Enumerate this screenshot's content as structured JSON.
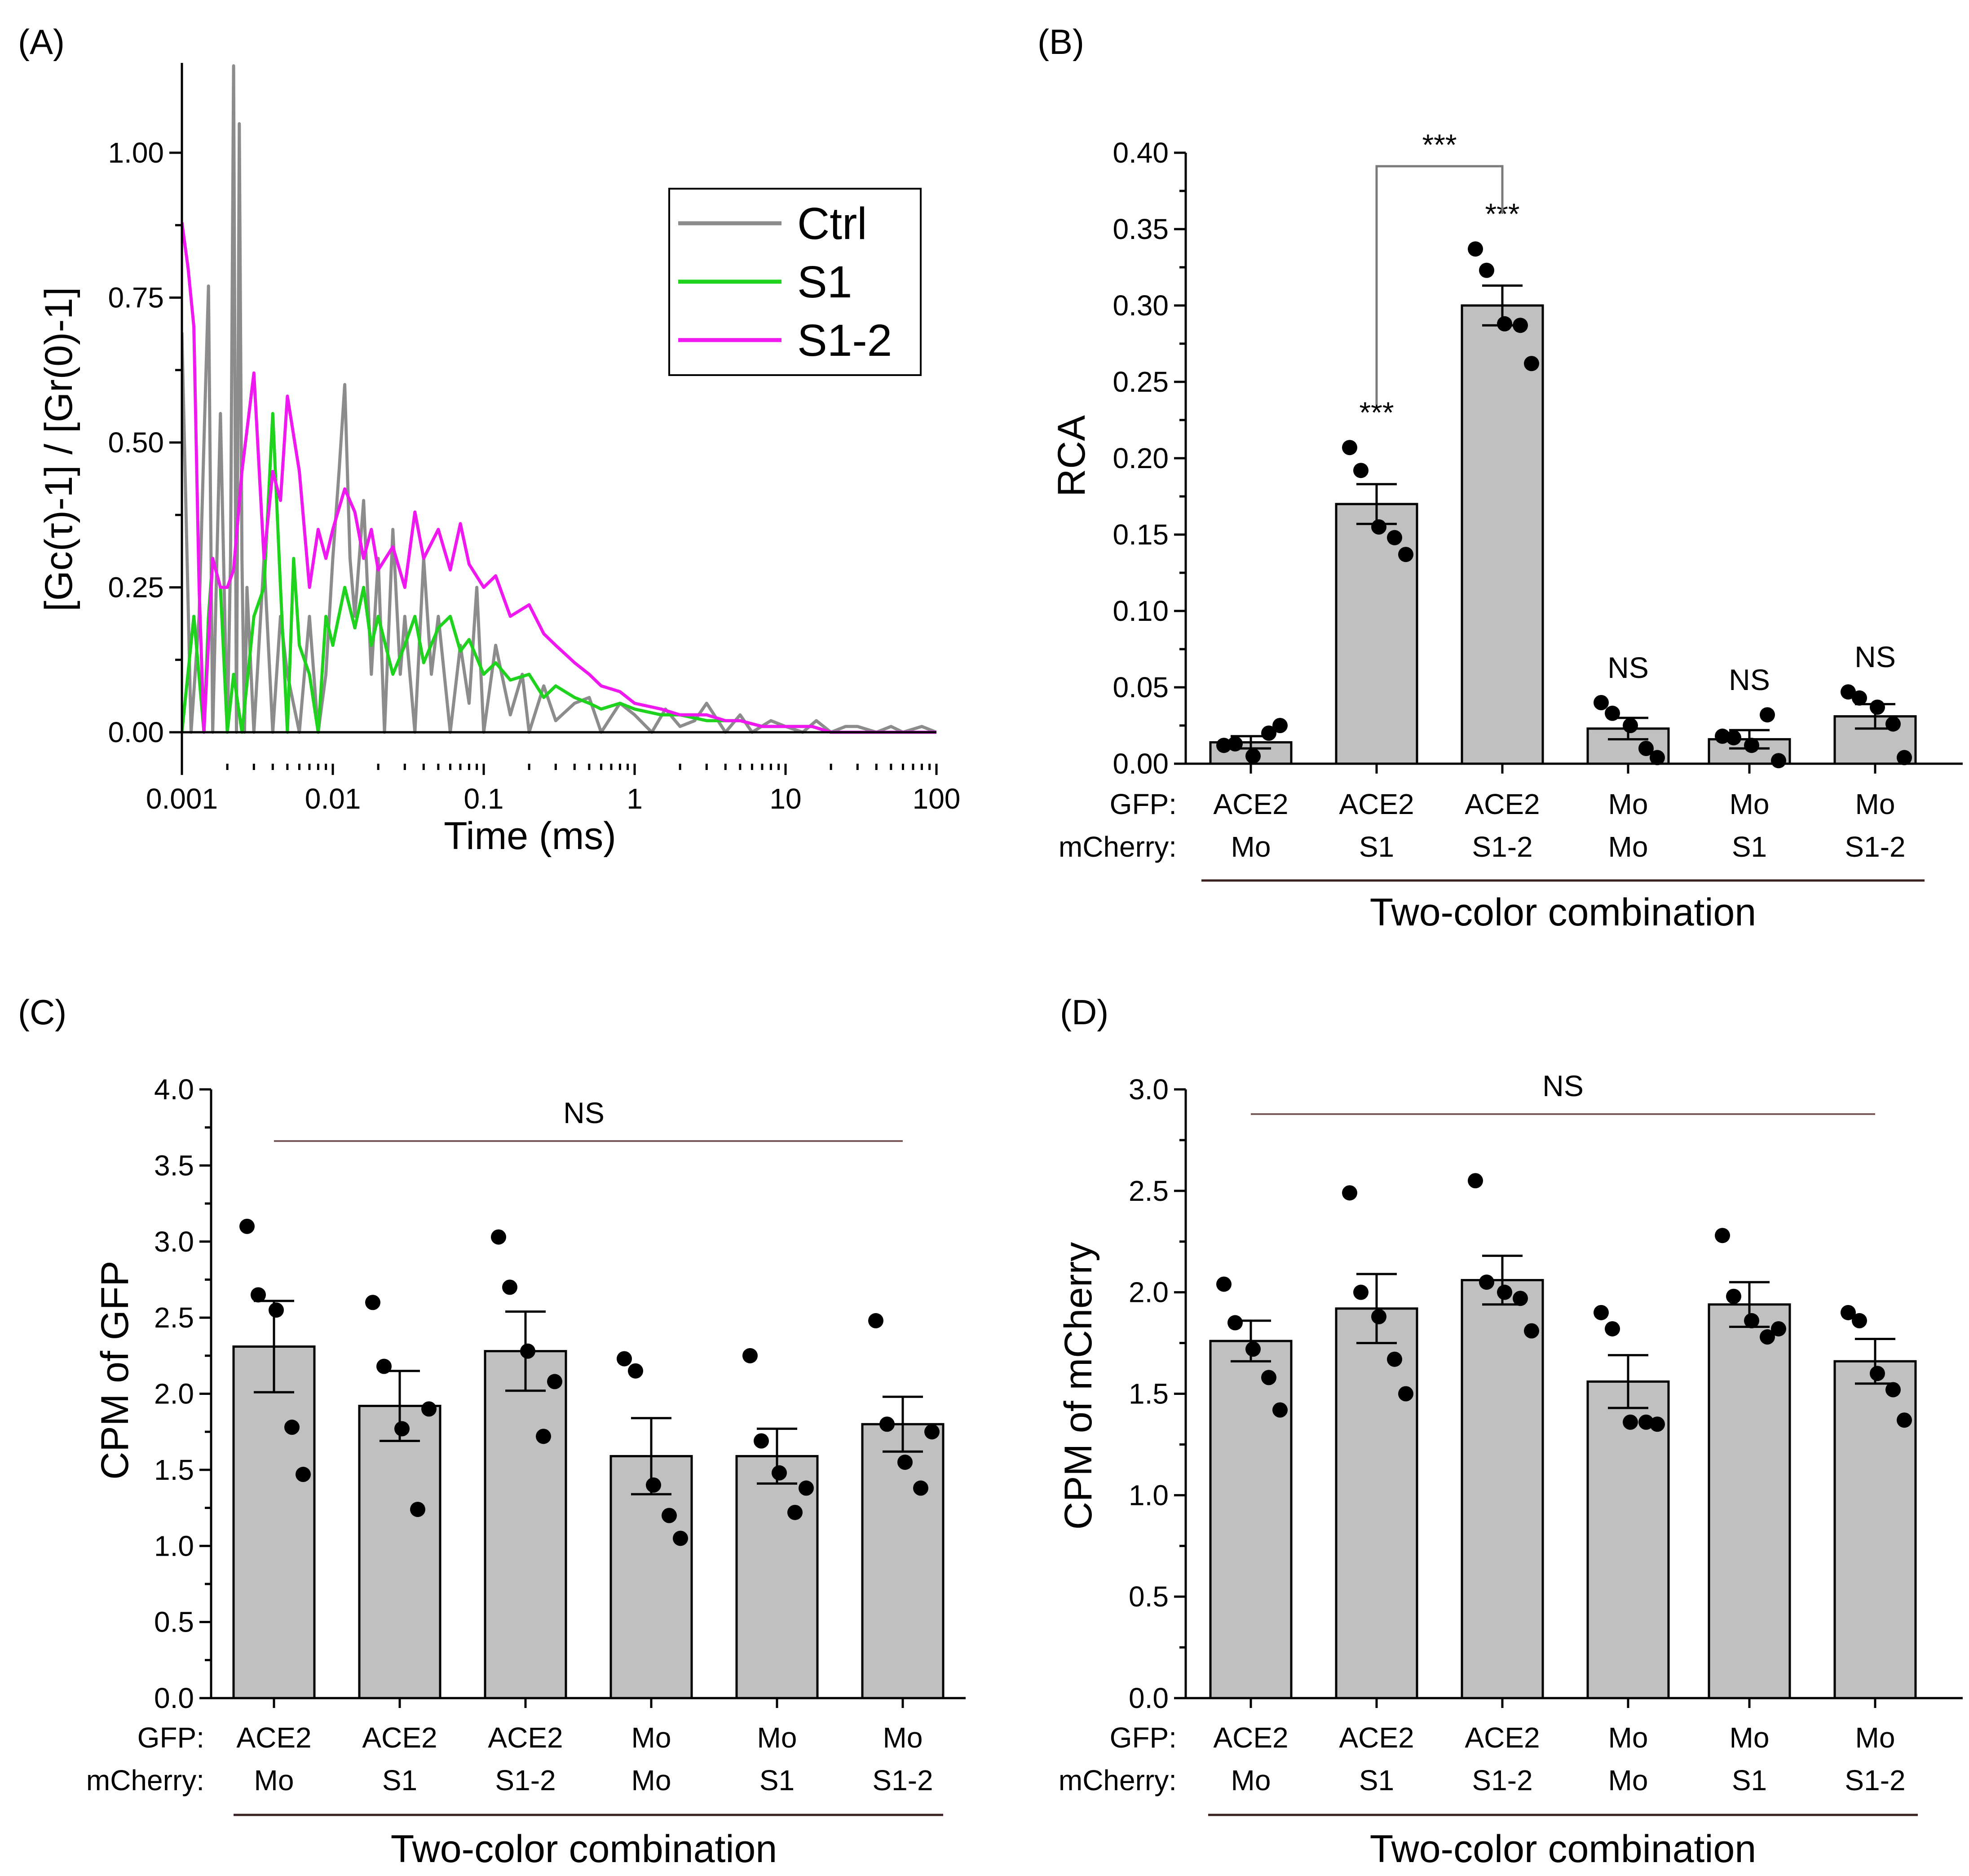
{
  "panels": {
    "A": {
      "label": "(A)",
      "legend": [
        {
          "name": "Ctrl",
          "color": "#8c8c8c"
        },
        {
          "name": "S1",
          "color": "#1ed21e"
        },
        {
          "name": "S1-2",
          "color": "#f018f0"
        }
      ]
    },
    "B": {
      "label": "(B)"
    },
    "C": {
      "label": "(C)"
    },
    "D": {
      "label": "(D)"
    }
  },
  "chart_data": [
    {
      "id": "A",
      "type": "line",
      "title": "",
      "xlabel": "Time (ms)",
      "ylabel": "[Gc(τ)-1] / [Gr(0)-1]",
      "xscale": "log",
      "xlim": [
        0.001,
        100
      ],
      "ylim": [
        -0.05,
        1.15
      ],
      "xticks": [
        "0.001",
        "0.01",
        "0.1",
        "1",
        "10",
        "100"
      ],
      "yticks": [
        "0.00",
        "0.25",
        "0.50",
        "0.75",
        "1.00"
      ],
      "series": [
        {
          "name": "Ctrl",
          "color": "#8c8c8c",
          "x": [
            0.001,
            0.00115,
            0.0013,
            0.0014,
            0.0015,
            0.0016,
            0.0018,
            0.002,
            0.0021,
            0.0022,
            0.0023,
            0.0024,
            0.0025,
            0.0026,
            0.0027,
            0.003,
            0.0035,
            0.004,
            0.0045,
            0.005,
            0.006,
            0.007,
            0.008,
            0.009,
            0.01,
            0.011,
            0.012,
            0.013,
            0.014,
            0.016,
            0.018,
            0.02,
            0.022,
            0.025,
            0.028,
            0.03,
            0.035,
            0.04,
            0.045,
            0.05,
            0.06,
            0.07,
            0.08,
            0.09,
            0.1,
            0.12,
            0.15,
            0.18,
            0.2,
            0.25,
            0.3,
            0.4,
            0.5,
            0.6,
            0.8,
            1,
            1.3,
            1.6,
            2,
            2.5,
            3,
            4,
            5,
            6,
            8,
            10,
            13,
            16,
            20,
            25,
            30,
            40,
            50,
            60,
            80,
            100
          ],
          "y": [
            0.69,
            0.0,
            0.2,
            0.5,
            0.77,
            0.0,
            0.55,
            0.0,
            0.3,
            1.15,
            0.0,
            1.05,
            0.3,
            0.0,
            0.25,
            0.0,
            0.3,
            0.0,
            0.2,
            0.1,
            0.0,
            0.2,
            0.0,
            0.1,
            0.3,
            0.45,
            0.6,
            0.3,
            0.2,
            0.4,
            0.1,
            0.3,
            0.0,
            0.35,
            0.1,
            0.2,
            0.0,
            0.3,
            0.1,
            0.2,
            0.0,
            0.15,
            0.05,
            0.25,
            0.0,
            0.15,
            0.03,
            0.1,
            0.0,
            0.08,
            0.02,
            0.05,
            0.06,
            0.0,
            0.05,
            0.03,
            0.0,
            0.04,
            0.01,
            0.02,
            0.05,
            0.0,
            0.03,
            0.0,
            0.02,
            0.01,
            0.0,
            0.02,
            0.0,
            0.01,
            0.01,
            0.0,
            0.01,
            0.0,
            0.01,
            0.0
          ]
        },
        {
          "name": "S1",
          "color": "#1ed21e",
          "x": [
            0.001,
            0.0012,
            0.0014,
            0.0015,
            0.0016,
            0.0018,
            0.002,
            0.0022,
            0.0025,
            0.003,
            0.0035,
            0.004,
            0.0045,
            0.005,
            0.0055,
            0.006,
            0.007,
            0.008,
            0.009,
            0.01,
            0.012,
            0.014,
            0.016,
            0.018,
            0.02,
            0.025,
            0.03,
            0.035,
            0.04,
            0.05,
            0.06,
            0.07,
            0.08,
            0.1,
            0.12,
            0.15,
            0.2,
            0.25,
            0.3,
            0.4,
            0.5,
            0.6,
            0.8,
            1,
            1.5,
            2,
            3,
            4,
            5,
            7,
            10,
            15,
            20,
            30,
            50,
            70,
            100
          ],
          "y": [
            0.0,
            0.2,
            0.0,
            0.2,
            0.3,
            0.25,
            0.0,
            0.1,
            0.0,
            0.2,
            0.25,
            0.55,
            0.25,
            0.0,
            0.3,
            0.15,
            0.1,
            0.0,
            0.2,
            0.15,
            0.25,
            0.18,
            0.25,
            0.15,
            0.2,
            0.1,
            0.15,
            0.2,
            0.12,
            0.18,
            0.2,
            0.14,
            0.16,
            0.1,
            0.12,
            0.09,
            0.1,
            0.06,
            0.08,
            0.06,
            0.05,
            0.04,
            0.05,
            0.04,
            0.03,
            0.03,
            0.02,
            0.02,
            0.02,
            0.01,
            0.01,
            0.01,
            0.0,
            0.0,
            0.0,
            0.0,
            0.0
          ]
        },
        {
          "name": "S1-2",
          "color": "#f018f0",
          "x": [
            0.001,
            0.0011,
            0.0012,
            0.0013,
            0.0014,
            0.0016,
            0.0018,
            0.002,
            0.0022,
            0.0025,
            0.003,
            0.0035,
            0.004,
            0.0045,
            0.005,
            0.006,
            0.007,
            0.008,
            0.009,
            0.01,
            0.012,
            0.014,
            0.016,
            0.018,
            0.02,
            0.025,
            0.03,
            0.035,
            0.04,
            0.05,
            0.06,
            0.07,
            0.08,
            0.1,
            0.12,
            0.15,
            0.2,
            0.25,
            0.3,
            0.4,
            0.5,
            0.6,
            0.8,
            1,
            1.5,
            2,
            3,
            4,
            5,
            7,
            10,
            15,
            20,
            30,
            50,
            70,
            100
          ],
          "y": [
            0.88,
            0.8,
            0.7,
            0.25,
            0.0,
            0.3,
            0.25,
            0.25,
            0.28,
            0.45,
            0.62,
            0.3,
            0.45,
            0.4,
            0.58,
            0.45,
            0.25,
            0.35,
            0.3,
            0.35,
            0.42,
            0.38,
            0.3,
            0.35,
            0.28,
            0.32,
            0.25,
            0.38,
            0.3,
            0.35,
            0.28,
            0.36,
            0.29,
            0.25,
            0.27,
            0.2,
            0.22,
            0.17,
            0.15,
            0.12,
            0.1,
            0.08,
            0.07,
            0.05,
            0.04,
            0.03,
            0.03,
            0.02,
            0.02,
            0.01,
            0.01,
            0.01,
            0.0,
            0.0,
            0.0,
            0.0,
            0.0
          ]
        }
      ]
    },
    {
      "id": "B",
      "type": "bar",
      "ylabel": "RCA",
      "xlabel": "Two-color combination",
      "ylim": [
        0,
        0.4
      ],
      "yticks": [
        "0.00",
        "0.05",
        "0.10",
        "0.15",
        "0.20",
        "0.25",
        "0.30",
        "0.35",
        "0.40"
      ],
      "row_labels": [
        "GFP:",
        "mCherry:"
      ],
      "categories_gfp": [
        "ACE2",
        "ACE2",
        "ACE2",
        "Mo",
        "Mo",
        "Mo"
      ],
      "categories_mcherry": [
        "Mo",
        "S1",
        "S1-2",
        "Mo",
        "S1",
        "S1-2"
      ],
      "values": [
        0.014,
        0.17,
        0.3,
        0.023,
        0.016,
        0.031
      ],
      "sem": [
        0.004,
        0.013,
        0.013,
        0.007,
        0.006,
        0.008
      ],
      "points": [
        [
          0.012,
          0.013,
          0.005,
          0.02,
          0.025
        ],
        [
          0.207,
          0.192,
          0.155,
          0.148,
          0.137
        ],
        [
          0.337,
          0.323,
          0.288,
          0.287,
          0.262
        ],
        [
          0.04,
          0.033,
          0.025,
          0.01,
          0.004
        ],
        [
          0.018,
          0.017,
          0.012,
          0.032,
          0.002
        ],
        [
          0.047,
          0.043,
          0.037,
          0.026,
          0.004
        ]
      ],
      "significance": [
        "",
        "***",
        "***",
        "NS",
        "NS",
        "NS"
      ],
      "comparison": {
        "from": 1,
        "to": 2,
        "label": "***"
      }
    },
    {
      "id": "C",
      "type": "bar",
      "ylabel": "CPM of GFP",
      "xlabel": "Two-color combination",
      "ylim": [
        0,
        4.0
      ],
      "yticks": [
        "0.0",
        "0.5",
        "1.0",
        "1.5",
        "2.0",
        "2.5",
        "3.0",
        "3.5",
        "4.0"
      ],
      "row_labels": [
        "GFP:",
        "mCherry:"
      ],
      "categories_gfp": [
        "ACE2",
        "ACE2",
        "ACE2",
        "Mo",
        "Mo",
        "Mo"
      ],
      "categories_mcherry": [
        "Mo",
        "S1",
        "S1-2",
        "Mo",
        "S1",
        "S1-2"
      ],
      "values": [
        2.31,
        1.92,
        2.28,
        1.59,
        1.59,
        1.8
      ],
      "sem": [
        0.3,
        0.23,
        0.26,
        0.25,
        0.18,
        0.18
      ],
      "points": [
        [
          3.1,
          2.65,
          2.55,
          1.78,
          1.47
        ],
        [
          2.6,
          2.18,
          1.77,
          1.24,
          1.9
        ],
        [
          3.03,
          2.7,
          2.28,
          1.72,
          2.08
        ],
        [
          2.23,
          2.15,
          1.4,
          1.2,
          1.05
        ],
        [
          2.25,
          1.69,
          1.48,
          1.22,
          1.38
        ],
        [
          2.48,
          1.8,
          1.55,
          1.38,
          1.75
        ]
      ],
      "overall_label": "NS"
    },
    {
      "id": "D",
      "type": "bar",
      "ylabel": "CPM of mCherry",
      "xlabel": "Two-color combination",
      "ylim": [
        0,
        3.0
      ],
      "yticks": [
        "0.0",
        "0.5",
        "1.0",
        "1.5",
        "2.0",
        "2.5",
        "3.0"
      ],
      "row_labels": [
        "GFP:",
        "mCherry:"
      ],
      "categories_gfp": [
        "ACE2",
        "ACE2",
        "ACE2",
        "Mo",
        "Mo",
        "Mo"
      ],
      "categories_mcherry": [
        "Mo",
        "S1",
        "S1-2",
        "Mo",
        "S1",
        "S1-2"
      ],
      "values": [
        1.76,
        1.92,
        2.06,
        1.56,
        1.94,
        1.66
      ],
      "sem": [
        0.1,
        0.17,
        0.12,
        0.13,
        0.11,
        0.11
      ],
      "points": [
        [
          2.04,
          1.85,
          1.72,
          1.58,
          1.42
        ],
        [
          2.49,
          2.0,
          1.88,
          1.67,
          1.5
        ],
        [
          2.55,
          2.05,
          2.0,
          1.97,
          1.81
        ],
        [
          1.9,
          1.82,
          1.36,
          1.36,
          1.35
        ],
        [
          2.28,
          1.98,
          1.86,
          1.78,
          1.82
        ],
        [
          1.9,
          1.86,
          1.6,
          1.52,
          1.37
        ]
      ],
      "overall_label": "NS"
    }
  ]
}
